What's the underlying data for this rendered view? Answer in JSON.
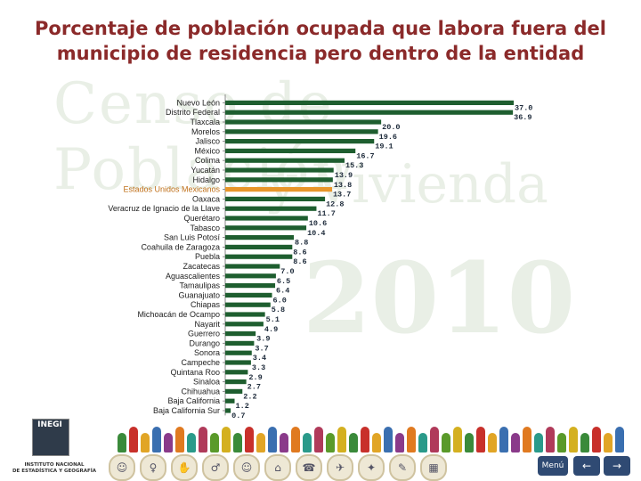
{
  "title": "Porcentaje de población ocupada que labora fuera del municipio de residencia pero dentro de la entidad",
  "watermark": {
    "line1": "Censo de Población",
    "line2": "y Vivienda",
    "line3": "2010"
  },
  "logo": {
    "acronym": "INEGI",
    "name_line1": "INSTITUTO NACIONAL",
    "name_line2": "DE ESTADÍSTICA Y GEOGRAFÍA"
  },
  "nav": {
    "menu_label": "Menú",
    "back_icon": "arrow-left-icon",
    "forward_icon": "arrow-right-icon"
  },
  "colors": {
    "bar": "#1e5e2f",
    "highlight": "#e8962a",
    "title": "#8b2a2a",
    "nav": "#2f4a73"
  },
  "chart_data": {
    "type": "bar",
    "orientation": "horizontal",
    "title": "Porcentaje de población ocupada que labora fuera del municipio de residencia pero dentro de la entidad",
    "xlabel": "",
    "ylabel": "",
    "highlight_category": "Estados Unidos Mexicanos",
    "categories": [
      "Nuevo León",
      "Distrito Federal",
      "Tlaxcala",
      "Morelos",
      "Jalisco",
      "México",
      "Colima",
      "Yucatán",
      "Hidalgo",
      "Estados Unidos Mexicanos",
      "Oaxaca",
      "Veracruz de Ignacio de la Llave",
      "Querétaro",
      "Tabasco",
      "San Luis Potosí",
      "Coahuila de Zaragoza",
      "Puebla",
      "Zacatecas",
      "Aguascalientes",
      "Tamaulipas",
      "Guanajuato",
      "Chiapas",
      "Michoacán de Ocampo",
      "Nayarit",
      "Guerrero",
      "Durango",
      "Sonora",
      "Campeche",
      "Quintana Roo",
      "Sinaloa",
      "Chihuahua",
      "Baja California",
      "Baja California Sur"
    ],
    "values": [
      37.0,
      36.9,
      20.0,
      19.6,
      19.1,
      16.7,
      15.3,
      13.9,
      13.8,
      13.7,
      12.8,
      11.7,
      10.6,
      10.4,
      8.8,
      8.6,
      8.6,
      7.0,
      6.5,
      6.4,
      6.0,
      5.8,
      5.1,
      4.9,
      3.9,
      3.7,
      3.4,
      3.3,
      2.9,
      2.7,
      2.2,
      1.2,
      0.7
    ],
    "value_labels": [
      "37.0",
      "36.9",
      "20.0",
      "19.6",
      "19.1",
      "16.7",
      "15.3",
      "13.9",
      "13.8",
      "13.7",
      "12.8",
      "11.7",
      "10.6",
      "10.4",
      "8.8",
      "8.6",
      "8.6",
      "7.0",
      "6.5",
      "6.4",
      "6.0",
      "5.8",
      "5.1",
      "4.9",
      "3.9",
      "3.7",
      "3.4",
      "3.3",
      "2.9",
      "2.7",
      "2.2",
      "1.2",
      "0.7"
    ],
    "xlim": [
      0,
      38
    ],
    "grid": false,
    "legend": "none"
  }
}
